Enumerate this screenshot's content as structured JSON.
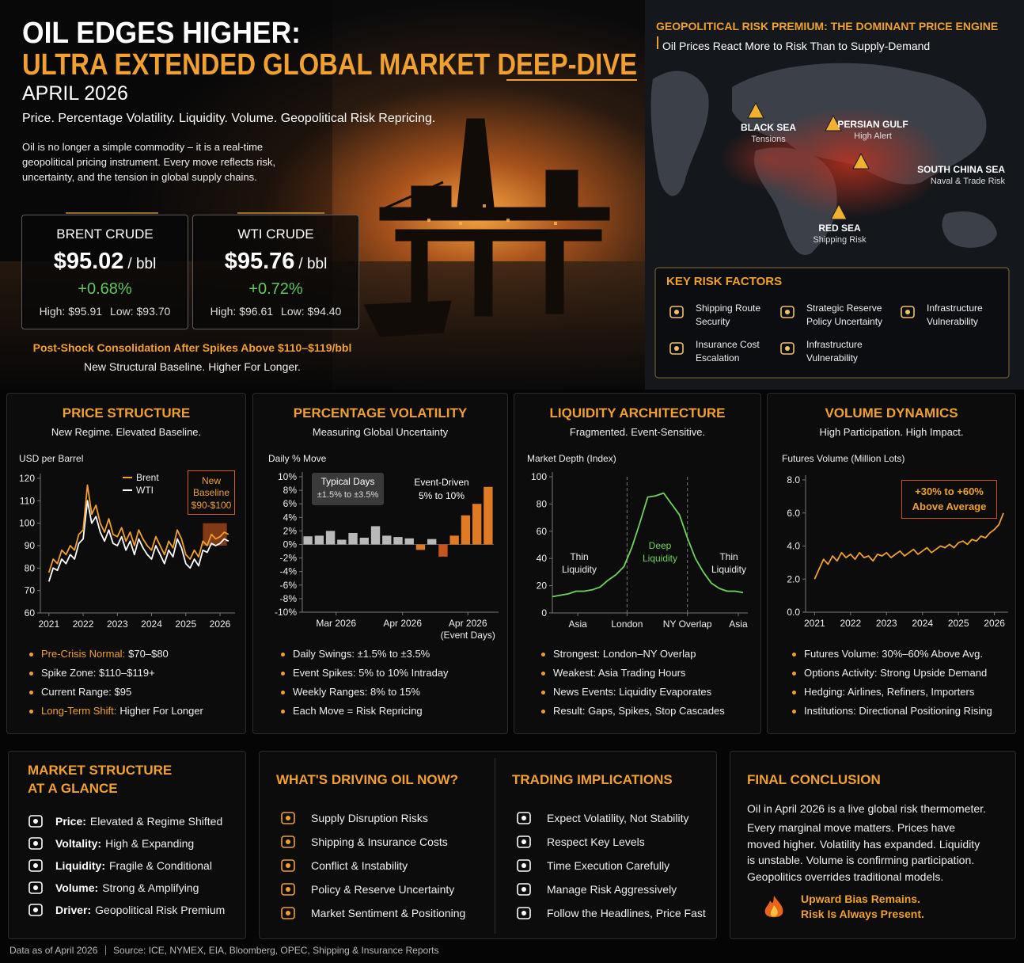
{
  "header": {
    "title": "OIL EDGES HIGHER:",
    "subtitle": "ULTRA EXTENDED GLOBAL MARKET DEEP-DIVE",
    "date": "APRIL 2026",
    "tagline": "Price. Percentage Volatility. Liquidity. Volume. Geopolitical Risk Repricing.",
    "intro": "Oil is no longer a simple commodity – it is a real-time geopolitical pricing instrument. Every move reflects risk, uncertainty, and the tension in global supply chains."
  },
  "prices": [
    {
      "name": "BRENT CRUDE",
      "price": "$95.02",
      "unit": "/ bbl",
      "change": "+0.68%",
      "high": "High: $95.91",
      "low": "Low: $93.70"
    },
    {
      "name": "WTI CRUDE",
      "price": "$95.76",
      "unit": "/ bbl",
      "change": "+0.72%",
      "high": "High: $96.61",
      "low": "Low: $94.40"
    }
  ],
  "price_note": {
    "headline": "Post-Shock Consolidation After Spikes Above $110–$119/bbl",
    "text": "New Structural Baseline. Higher For Longer."
  },
  "geopolitics": {
    "title": "GEOPOLITICAL RISK PREMIUM: THE DOMINANT PRICE ENGINE",
    "subtitle": "Oil Prices React More to Risk Than to Supply-Demand",
    "hotspots": [
      {
        "name": "BLACK SEA",
        "note": "Tensions"
      },
      {
        "name": "PERSIAN GULF",
        "note": "High Alert"
      },
      {
        "name": "SOUTH CHINA SEA",
        "note": "Naval & Trade Risk"
      },
      {
        "name": "RED SEA",
        "note": "Shipping Risk"
      }
    ]
  },
  "risk_factors": {
    "title": "KEY RISK FACTORS",
    "items": [
      "Shipping Route Security",
      "Strategic Reserve Policy Uncertainty",
      "Infrastructure Vulnerability",
      "Insurance Cost Escalation",
      "Infrastructure Vulnerability"
    ]
  },
  "chart_data": [
    {
      "type": "line",
      "title": "PRICE STRUCTURE",
      "subtitle": "New Regime. Elevated Baseline.",
      "y_label": "USD per Barrel",
      "x": [
        2021,
        2021.125,
        2021.25,
        2021.375,
        2021.5,
        2021.625,
        2021.75,
        2021.875,
        2022,
        2022.125,
        2022.25,
        2022.375,
        2022.5,
        2022.625,
        2022.75,
        2022.875,
        2023,
        2023.125,
        2023.25,
        2023.375,
        2023.5,
        2023.625,
        2023.75,
        2023.875,
        2024,
        2024.125,
        2024.25,
        2024.375,
        2024.5,
        2024.625,
        2024.75,
        2024.875,
        2025,
        2025.125,
        2025.25,
        2025.375,
        2025.5,
        2025.625,
        2025.75,
        2025.875,
        2026,
        2026.125,
        2026.25
      ],
      "series": [
        {
          "name": "Brent",
          "color": "#f0a030",
          "values": [
            78,
            84,
            82,
            88,
            86,
            90,
            88,
            95,
            97,
            117,
            104,
            108,
            100,
            96,
            102,
            95,
            94,
            98,
            92,
            96,
            90,
            97,
            93,
            90,
            88,
            94,
            90,
            86,
            92,
            89,
            97,
            93,
            86,
            84,
            88,
            85,
            92,
            90,
            95,
            93,
            94,
            96,
            95
          ]
        },
        {
          "name": "WTI",
          "color": "#ffffff",
          "values": [
            74,
            80,
            79,
            84,
            82,
            86,
            84,
            91,
            93,
            110,
            100,
            103,
            96,
            92,
            97,
            91,
            90,
            94,
            88,
            92,
            86,
            93,
            89,
            86,
            84,
            90,
            86,
            82,
            88,
            85,
            93,
            89,
            82,
            80,
            84,
            81,
            88,
            87,
            91,
            90,
            91,
            93,
            92
          ]
        }
      ],
      "xlim": [
        2020.75,
        2026.3
      ],
      "xticks": [
        2021,
        2022,
        2023,
        2024,
        2025,
        2026
      ],
      "ylim": [
        60,
        120
      ],
      "yticks": [
        60,
        70,
        80,
        90,
        100,
        110,
        120
      ],
      "baseline": {
        "x": [
          2025.5,
          2026.2
        ],
        "y": [
          90,
          100
        ]
      },
      "annotations": [
        "New Baseline",
        "$90-$100"
      ],
      "bullets": [
        {
          "lead": "Pre-Crisis Normal:",
          "text": "$70–$80"
        },
        "Spike Zone: $110–$119+",
        "Current Range: $95",
        {
          "lead": "Long-Term Shift:",
          "text": "Higher For Longer"
        }
      ]
    },
    {
      "type": "bar",
      "title": "PERCENTAGE VOLATILITY",
      "subtitle": "Measuring Global Uncertainty",
      "y_label": "Daily % Move",
      "values": [
        1.2,
        1.3,
        2.0,
        0.7,
        1.7,
        1.0,
        2.7,
        1.3,
        1.1,
        0.9,
        -0.8,
        0.8,
        -1.8,
        1.3,
        4.3,
        6.0,
        8.5
      ],
      "colors": [
        "#b9b9b9",
        "#b9b9b9",
        "#b9b9b9",
        "#b9b9b9",
        "#b9b9b9",
        "#b9b9b9",
        "#b9b9b9",
        "#b9b9b9",
        "#b9b9b9",
        "#b9b9b9",
        "#e07b24",
        "#b9b9b9",
        "#c8561a",
        "#e07b24",
        "#e07b24",
        "#e07b24",
        "#e07b24"
      ],
      "xticks": [
        {
          "value": 2.5,
          "label": "Mar 2026"
        },
        {
          "value": 8.4,
          "label": "Apr 2026"
        },
        {
          "value": 14.2,
          "label": "Apr 2026 (Event Days)"
        }
      ],
      "ylim": [
        -10,
        10
      ],
      "yticks": [
        {
          "value": -10,
          "label": "-10%"
        },
        {
          "value": -8,
          "label": "-8%"
        },
        {
          "value": -6,
          "label": "-6%"
        },
        {
          "value": -4,
          "label": "-4%"
        },
        {
          "value": -2,
          "label": "-2%"
        },
        {
          "value": 0,
          "label": "0%"
        },
        {
          "value": 2,
          "label": "2%"
        },
        {
          "value": 4,
          "label": "4%"
        },
        {
          "value": 6,
          "label": "6%"
        },
        {
          "value": 8,
          "label": "8%"
        },
        {
          "value": 10,
          "label": "10%"
        }
      ],
      "annotations": [
        "Typical Days",
        "±1.5% to ±3.5%",
        "Event-Driven",
        "5% to 10%"
      ],
      "bullets": [
        "Daily Swings: ±1.5% to ±3.5%",
        "Event Spikes: 5% to 10% Intraday",
        "Weekly Ranges: 8% to 15%",
        "Each Move = Risk Repricing"
      ]
    },
    {
      "type": "line",
      "title": "LIQUIDITY ARCHITECTURE",
      "subtitle": "Fragmented. Event-Sensitive.",
      "y_label": "Market Depth (Index)",
      "x": [
        0,
        1,
        2,
        3,
        4,
        5,
        6,
        7,
        8,
        9,
        10,
        11,
        12,
        13,
        14,
        15,
        16,
        17,
        18,
        19,
        20,
        21,
        22,
        23,
        24
      ],
      "series": [
        {
          "name": "Market Depth",
          "color": "#6fd35c",
          "values": [
            12,
            13,
            14,
            16,
            16,
            17,
            19,
            24,
            28,
            34,
            48,
            66,
            85,
            86,
            88,
            80,
            72,
            55,
            40,
            30,
            22,
            18,
            16,
            16,
            15
          ]
        }
      ],
      "xlim": [
        0,
        24
      ],
      "xticks": [
        {
          "value": 3.2,
          "label": "Asia"
        },
        {
          "value": 9.4,
          "label": "London"
        },
        {
          "value": 17,
          "label": "NY Overlap"
        },
        {
          "value": 23.4,
          "label": "Asia"
        }
      ],
      "ylim": [
        0,
        100
      ],
      "yticks": [
        0,
        20,
        40,
        60,
        80,
        100
      ],
      "annotations": [
        "Thin Liquidity",
        "Deep Liquidity",
        "Thin Liquidity"
      ],
      "bullets": [
        "Strongest: London–NY Overlap",
        "Weakest: Asia Trading Hours",
        "News Events: Liquidity Evaporates",
        "Result: Gaps, Spikes, Stop Cascades"
      ]
    },
    {
      "type": "line",
      "title": "VOLUME DYNAMICS",
      "subtitle": "High Participation. High Impact.",
      "y_label": "Futures Volume (Million Lots)",
      "x": [
        2021,
        2021.125,
        2021.25,
        2021.375,
        2021.5,
        2021.625,
        2021.75,
        2021.875,
        2022,
        2022.125,
        2022.25,
        2022.375,
        2022.5,
        2022.625,
        2022.75,
        2022.875,
        2023,
        2023.125,
        2023.25,
        2023.375,
        2023.5,
        2023.625,
        2023.75,
        2023.875,
        2024,
        2024.125,
        2024.25,
        2024.375,
        2024.5,
        2024.625,
        2024.75,
        2024.875,
        2025,
        2025.125,
        2025.25,
        2025.375,
        2025.5,
        2025.625,
        2025.75,
        2025.875,
        2026,
        2026.125,
        2026.25
      ],
      "series": [
        {
          "name": "Futures Volume",
          "color": "#f0a030",
          "values": [
            2.0,
            2.6,
            3.2,
            2.9,
            3.4,
            3.1,
            3.6,
            3.3,
            3.5,
            3.2,
            3.6,
            3.3,
            3.4,
            3.1,
            3.5,
            3.4,
            3.6,
            3.3,
            3.5,
            3.7,
            3.4,
            3.6,
            3.8,
            3.5,
            3.7,
            3.9,
            3.6,
            3.8,
            4.0,
            3.9,
            4.1,
            3.9,
            4.2,
            4.3,
            4.1,
            4.4,
            4.3,
            4.6,
            4.5,
            4.8,
            5.0,
            5.3,
            6.0
          ]
        }
      ],
      "xlim": [
        2020.75,
        2026.25
      ],
      "xticks": [
        2021,
        2022,
        2023,
        2024,
        2025,
        2026
      ],
      "ylim": [
        0,
        8
      ],
      "yticks": [
        {
          "value": 0,
          "label": "0.0"
        },
        {
          "value": 2,
          "label": "2.0"
        },
        {
          "value": 4,
          "label": "4.0"
        },
        {
          "value": 6,
          "label": "6.0"
        },
        {
          "value": 8,
          "label": "8.0"
        }
      ],
      "annotations": [
        "+30% to +60%",
        "Above Average"
      ],
      "bullets": [
        "Futures Volume: 30%–60% Above Avg.",
        "Options Activity: Strong Upside Demand",
        "Hedging: Airlines, Refiners, Importers",
        "Institutions: Directional Positioning Rising"
      ]
    }
  ],
  "market_structure": {
    "title": "MARKET STRUCTURE AT A GLANCE",
    "items": [
      {
        "label": "Price:",
        "text": "Elevated & Regime Shifted"
      },
      {
        "label": "Voltality:",
        "text": "High & Expanding"
      },
      {
        "label": "Liquidity:",
        "text": "Fragile & Conditional"
      },
      {
        "label": "Volume:",
        "text": "Strong & Amplifying"
      },
      {
        "label": "Driver:",
        "text": "Geopolitical Risk Premium"
      }
    ]
  },
  "drivers": {
    "title": "WHAT'S DRIVING OIL NOW?",
    "items": [
      "Supply Disruption Risks",
      "Shipping & Insurance Costs",
      "Conflict & Instability",
      "Policy & Reserve Uncertainty",
      "Market Sentiment & Positioning"
    ]
  },
  "implications": {
    "title": "TRADING IMPLICATIONS",
    "items": [
      "Expect Volatility, Not Stability",
      "Respect Key Levels",
      "Time Execution Carefully",
      "Manage Risk Aggressively",
      "Follow the Headlines, Price Fast"
    ]
  },
  "conclusion": {
    "title": "FINAL CONCLUSION",
    "lead": "Oil in April 2026 is a live global risk thermometer.",
    "text": "Every marginal move matters. Prices have moved higher. Volatility has expanded. Liquidity is unstable. Volume is confirming participation. Geopolitics overrides traditional models.",
    "callout": [
      "Upward Bias Remains.",
      "Risk Is Always Present."
    ]
  },
  "footer": {
    "date": "Data as of April 2026",
    "source": "Source: ICE, NYMEX, EIA, Bloomberg, OPEC, Shipping & Insurance Reports"
  }
}
